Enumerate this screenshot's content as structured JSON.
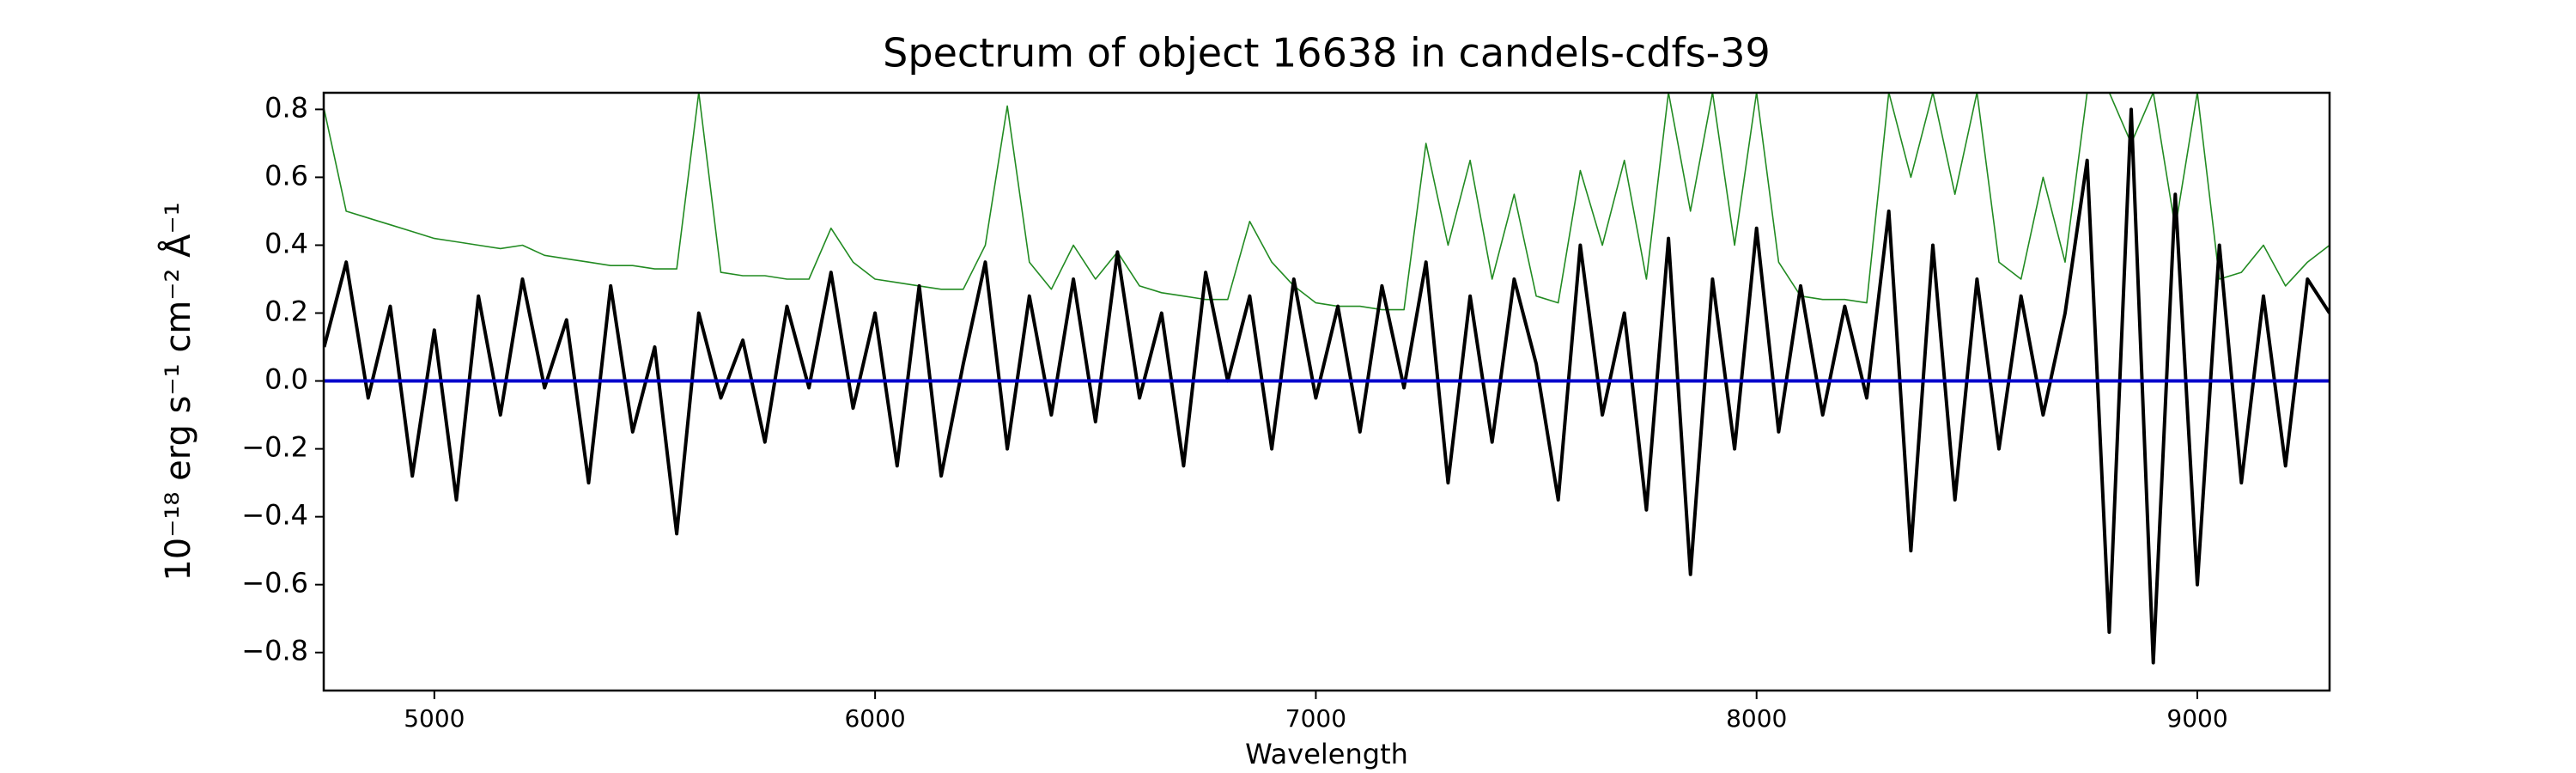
{
  "chart_data": {
    "type": "line",
    "title": "Spectrum of object 16638 in candels-cdfs-39",
    "x_label": "Wavelength",
    "y_label": "10⁻¹⁸ erg s⁻¹ cm⁻² Å⁻¹",
    "x": [
      4750,
      4800,
      4850,
      4900,
      4950,
      5000,
      5050,
      5100,
      5150,
      5200,
      5250,
      5300,
      5350,
      5400,
      5450,
      5500,
      5550,
      5600,
      5650,
      5700,
      5750,
      5800,
      5850,
      5900,
      5950,
      6000,
      6050,
      6100,
      6150,
      6200,
      6250,
      6300,
      6350,
      6400,
      6450,
      6500,
      6550,
      6600,
      6650,
      6700,
      6750,
      6800,
      6850,
      6900,
      6950,
      7000,
      7050,
      7100,
      7150,
      7200,
      7250,
      7300,
      7350,
      7400,
      7450,
      7500,
      7550,
      7600,
      7650,
      7700,
      7750,
      7800,
      7850,
      7900,
      7950,
      8000,
      8050,
      8100,
      8150,
      8200,
      8250,
      8300,
      8350,
      8400,
      8450,
      8500,
      8550,
      8600,
      8650,
      8700,
      8750,
      8800,
      8850,
      8900,
      8950,
      9000,
      9050,
      9100,
      9150,
      9200,
      9250,
      9300
    ],
    "series": [
      {
        "color": "#228b22",
        "width": 1.6,
        "values": [
          0.8,
          0.5,
          0.48,
          0.46,
          0.44,
          0.42,
          0.41,
          0.4,
          0.39,
          0.4,
          0.37,
          0.36,
          0.35,
          0.34,
          0.34,
          0.33,
          0.33,
          0.85,
          0.32,
          0.31,
          0.31,
          0.3,
          0.3,
          0.45,
          0.35,
          0.3,
          0.29,
          0.28,
          0.27,
          0.27,
          0.4,
          0.81,
          0.35,
          0.27,
          0.4,
          0.3,
          0.38,
          0.28,
          0.26,
          0.25,
          0.24,
          0.24,
          0.47,
          0.35,
          0.28,
          0.23,
          0.22,
          0.22,
          0.21,
          0.21,
          0.7,
          0.4,
          0.65,
          0.3,
          0.55,
          0.25,
          0.23,
          0.62,
          0.4,
          0.65,
          0.3,
          0.85,
          0.5,
          0.85,
          0.4,
          0.85,
          0.35,
          0.25,
          0.24,
          0.24,
          0.23,
          0.85,
          0.6,
          0.85,
          0.55,
          0.85,
          0.35,
          0.3,
          0.6,
          0.35,
          0.85,
          0.85,
          0.7,
          0.85,
          0.45,
          0.85,
          0.3,
          0.32,
          0.4,
          0.28,
          0.35,
          0.4
        ]
      },
      {
        "color": "#000000",
        "width": 4,
        "values": [
          0.1,
          0.35,
          -0.05,
          0.22,
          -0.28,
          0.15,
          -0.35,
          0.25,
          -0.1,
          0.3,
          -0.02,
          0.18,
          -0.3,
          0.28,
          -0.15,
          0.1,
          -0.45,
          0.2,
          -0.05,
          0.12,
          -0.18,
          0.22,
          -0.02,
          0.32,
          -0.08,
          0.2,
          -0.25,
          0.28,
          -0.28,
          0.05,
          0.35,
          -0.2,
          0.25,
          -0.1,
          0.3,
          -0.12,
          0.38,
          -0.05,
          0.2,
          -0.25,
          0.32,
          0.0,
          0.25,
          -0.2,
          0.3,
          -0.05,
          0.22,
          -0.15,
          0.28,
          -0.02,
          0.35,
          -0.3,
          0.25,
          -0.18,
          0.3,
          0.05,
          -0.35,
          0.4,
          -0.1,
          0.2,
          -0.38,
          0.42,
          -0.57,
          0.3,
          -0.2,
          0.45,
          -0.15,
          0.28,
          -0.1,
          0.22,
          -0.05,
          0.5,
          -0.5,
          0.4,
          -0.35,
          0.3,
          -0.2,
          0.25,
          -0.1,
          0.2,
          0.65,
          -0.74,
          0.8,
          -0.83,
          0.55,
          -0.6,
          0.4,
          -0.3,
          0.25,
          -0.25,
          0.3,
          0.2
        ]
      }
    ],
    "hline": {
      "value": 0,
      "color": "#0000cc"
    },
    "xlim": [
      4749,
      9300
    ],
    "ylim": [
      -0.912,
      0.849
    ],
    "xticks": [
      5000,
      6000,
      7000,
      8000,
      9000
    ],
    "yticks": [
      {
        "value": -0.8,
        "label": "−0.8"
      },
      {
        "value": -0.6,
        "label": "−0.6"
      },
      {
        "value": -0.4,
        "label": "−0.4"
      },
      {
        "value": -0.2,
        "label": "−0.2"
      },
      {
        "value": 0,
        "label": "0.0"
      },
      0.2,
      0.4,
      0.6,
      0.8
    ]
  }
}
